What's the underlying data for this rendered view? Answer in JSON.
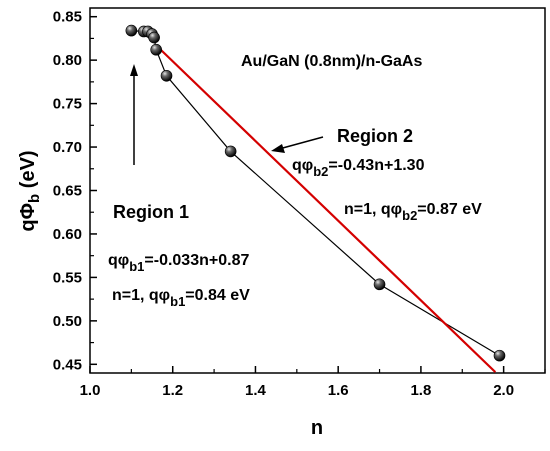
{
  "chart_data": {
    "type": "scatter",
    "title": "Au/GaN (0.8nm)/n-GaAs",
    "xlabel": "n",
    "ylabel_main": "qΦ",
    "ylabel_sub": "b",
    "ylabel_unit": " (eV)",
    "xlim": [
      1.0,
      2.1
    ],
    "ylim": [
      0.44,
      0.86
    ],
    "x_ticks": [
      1.0,
      1.2,
      1.4,
      1.6,
      1.8,
      2.0
    ],
    "x_tick_labels": [
      "1.0",
      "1.2",
      "1.4",
      "1.6",
      "1.8",
      "2.0"
    ],
    "y_ticks": [
      0.45,
      0.5,
      0.55,
      0.6,
      0.65,
      0.7,
      0.75,
      0.8,
      0.85
    ],
    "y_tick_labels": [
      "0.45",
      "0.50",
      "0.55",
      "0.60",
      "0.65",
      "0.70",
      "0.75",
      "0.80",
      "0.85"
    ],
    "grid": false,
    "series": [
      {
        "style": "black line with spheres",
        "color": "#000000",
        "points": [
          {
            "x": 1.1,
            "y": 0.834
          },
          {
            "x": 1.13,
            "y": 0.833
          },
          {
            "x": 1.14,
            "y": 0.833
          },
          {
            "x": 1.15,
            "y": 0.83
          },
          {
            "x": 1.155,
            "y": 0.826
          },
          {
            "x": 1.16,
            "y": 0.812
          },
          {
            "x": 1.185,
            "y": 0.782
          },
          {
            "x": 1.34,
            "y": 0.695
          },
          {
            "x": 1.7,
            "y": 0.542
          },
          {
            "x": 1.99,
            "y": 0.46
          }
        ]
      },
      {
        "style": "red fit line",
        "color": "#d40000",
        "points": [
          {
            "x": 1.16,
            "y": 0.817
          },
          {
            "x": 1.98,
            "y": 0.441
          }
        ]
      }
    ],
    "annotations": {
      "region2_label": "Region 2",
      "region2_eq_pre": "qφ",
      "region2_eq_sub": "b2",
      "region2_eq_post": "=-0.43n+1.30",
      "region2_val_pre": "n=1,  qφ",
      "region2_val_sub": "b2",
      "region2_val_post": "=0.87 eV",
      "region1_label": "Region 1",
      "region1_eq_pre": "qφ",
      "region1_eq_sub": "b1",
      "region1_eq_post": "=-0.033n+0.87",
      "region1_val_pre": "n=1,  qφ",
      "region1_val_sub": "b1",
      "region1_val_post": "=0.84 eV"
    }
  }
}
